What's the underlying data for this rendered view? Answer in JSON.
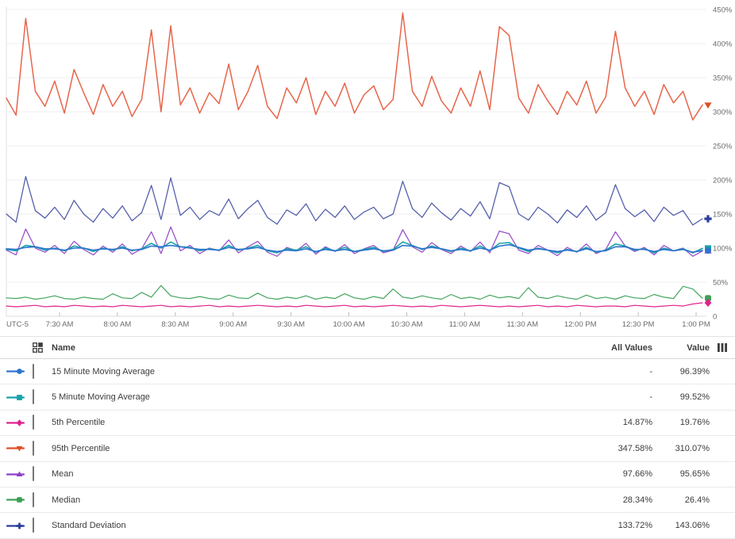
{
  "chart_data": {
    "type": "line",
    "title": "",
    "xlabel": "",
    "ylabel": "",
    "ylim": [
      0,
      450
    ],
    "grid": true,
    "legend_position": "table-below",
    "x_timezone_label": "UTC-5",
    "xticks": [
      "7:30 AM",
      "8:00 AM",
      "8:30 AM",
      "9:00 AM",
      "9:30 AM",
      "10:00 AM",
      "10:30 AM",
      "11:00 AM",
      "11:30 AM",
      "12:00 PM",
      "12:30 PM",
      "1:00 PM"
    ],
    "yticks": [
      {
        "v": 450,
        "label": "450%"
      },
      {
        "v": 400,
        "label": "400%"
      },
      {
        "v": 350,
        "label": "350%"
      },
      {
        "v": 300,
        "label": "300%"
      },
      {
        "v": 250,
        "label": "250%"
      },
      {
        "v": 200,
        "label": "200%"
      },
      {
        "v": 150,
        "label": "150%"
      },
      {
        "v": 100,
        "label": "100%"
      },
      {
        "v": 50,
        "label": "50%"
      },
      {
        "v": 0,
        "label": "0"
      }
    ],
    "series": [
      {
        "name": "95th Percentile",
        "color": "#e7654a",
        "marker_color": "#e14e26",
        "marker": "triangle-down",
        "width": 1.5,
        "values": [
          320,
          295,
          437,
          330,
          308,
          345,
          298,
          362,
          328,
          296,
          340,
          308,
          330,
          293,
          318,
          420,
          300,
          426,
          310,
          335,
          298,
          328,
          312,
          370,
          303,
          330,
          368,
          308,
          290,
          335,
          313,
          350,
          296,
          330,
          308,
          342,
          298,
          325,
          338,
          303,
          318,
          445,
          330,
          308,
          352,
          316,
          298,
          335,
          308,
          360,
          303,
          425,
          412,
          320,
          298,
          340,
          316,
          296,
          330,
          310,
          345,
          298,
          322,
          418,
          335,
          308,
          330,
          296,
          340,
          313,
          330,
          288,
          310.07
        ]
      },
      {
        "name": "Standard Deviation",
        "color": "#5560ac",
        "marker_color": "#2b3e9c",
        "marker": "plus",
        "width": 1.3,
        "values": [
          150,
          138,
          205,
          155,
          144,
          160,
          142,
          170,
          150,
          138,
          158,
          144,
          162,
          140,
          152,
          192,
          142,
          203,
          148,
          160,
          142,
          155,
          148,
          172,
          143,
          158,
          170,
          145,
          135,
          156,
          148,
          165,
          140,
          157,
          145,
          162,
          142,
          153,
          160,
          143,
          150,
          198,
          158,
          145,
          166,
          152,
          141,
          158,
          147,
          168,
          143,
          196,
          190,
          150,
          141,
          160,
          150,
          137,
          156,
          145,
          162,
          141,
          152,
          193,
          158,
          146,
          156,
          139,
          160,
          148,
          155,
          134,
          143.06
        ]
      },
      {
        "name": "Mean",
        "color": "#9852cb",
        "marker_color": "#8c3fc6",
        "marker": "triangle-up",
        "width": 1.3,
        "values": [
          97,
          90,
          128,
          100,
          94,
          104,
          92,
          110,
          98,
          90,
          103,
          94,
          106,
          91,
          99,
          124,
          92,
          131,
          96,
          104,
          92,
          100,
          96,
          112,
          93,
          102,
          110,
          94,
          88,
          101,
          96,
          107,
          91,
          102,
          95,
          105,
          92,
          99,
          104,
          93,
          97,
          127,
          102,
          94,
          108,
          98,
          92,
          103,
          95,
          109,
          93,
          125,
          121,
          97,
          92,
          104,
          97,
          89,
          101,
          94,
          106,
          92,
          98,
          124,
          103,
          95,
          101,
          90,
          104,
          96,
          100,
          88,
          95.65
        ]
      },
      {
        "name": "5 Minute Moving Average",
        "color": "#17a2aa",
        "marker_color": "#17a2aa",
        "marker": "square",
        "width": 1.6,
        "values": [
          98,
          96,
          104,
          102,
          97,
          100,
          96,
          103,
          100,
          95,
          100,
          97,
          102,
          96,
          99,
          107,
          100,
          109,
          102,
          101,
          96,
          99,
          97,
          104,
          97,
          100,
          104,
          96,
          93,
          99,
          97,
          102,
          94,
          100,
          96,
          101,
          95,
          98,
          101,
          95,
          98,
          109,
          104,
          98,
          103,
          99,
          95,
          100,
          96,
          103,
          96,
          107,
          108,
          100,
          95,
          100,
          97,
          93,
          98,
          95,
          101,
          94,
          97,
          106,
          103,
          97,
          99,
          93,
          100,
          96,
          99,
          93,
          99.52
        ]
      },
      {
        "name": "15 Minute Moving Average",
        "color": "#2d74cd",
        "marker_color": "#2d74cd",
        "marker": "circle",
        "width": 1.6,
        "values": [
          99,
          98,
          101,
          102,
          99,
          99,
          97,
          100,
          100,
          97,
          99,
          98,
          100,
          97,
          98,
          103,
          102,
          104,
          102,
          100,
          98,
          98,
          97,
          101,
          98,
          99,
          101,
          97,
          95,
          97,
          96,
          99,
          95,
          98,
          96,
          98,
          95,
          97,
          99,
          96,
          97,
          104,
          103,
          99,
          101,
          99,
          96,
          98,
          96,
          100,
          97,
          103,
          105,
          101,
          97,
          99,
          97,
          95,
          97,
          95,
          99,
          95,
          96,
          102,
          102,
          98,
          98,
          95,
          98,
          96,
          98,
          94,
          96.39
        ]
      },
      {
        "name": "Median",
        "color": "#44a55e",
        "marker_color": "#3da054",
        "marker": "rounded-square",
        "width": 1.2,
        "values": [
          27,
          26,
          28,
          25,
          27,
          30,
          26,
          25,
          28,
          26,
          25,
          33,
          27,
          26,
          35,
          28,
          45,
          30,
          27,
          26,
          29,
          26,
          25,
          31,
          27,
          26,
          34,
          27,
          25,
          28,
          26,
          30,
          25,
          28,
          26,
          33,
          27,
          25,
          29,
          26,
          40,
          28,
          26,
          30,
          27,
          25,
          32,
          26,
          28,
          25,
          31,
          27,
          29,
          26,
          42,
          28,
          26,
          30,
          27,
          25,
          31,
          26,
          28,
          25,
          30,
          27,
          26,
          32,
          28,
          26,
          44,
          40,
          26.4
        ]
      },
      {
        "name": "5th Percentile",
        "color": "#e0258f",
        "marker_color": "#e0218d",
        "marker": "diamond",
        "width": 1.2,
        "values": [
          15,
          14,
          15,
          16,
          14,
          15,
          14,
          16,
          15,
          14,
          15,
          14,
          16,
          15,
          14,
          15,
          16,
          14,
          15,
          14,
          15,
          16,
          14,
          15,
          14,
          15,
          16,
          15,
          14,
          15,
          14,
          16,
          15,
          14,
          15,
          16,
          14,
          15,
          14,
          15,
          16,
          15,
          14,
          15,
          14,
          16,
          15,
          14,
          15,
          16,
          15,
          14,
          15,
          14,
          15,
          16,
          14,
          15,
          14,
          16,
          15,
          14,
          15,
          15,
          14,
          16,
          15,
          14,
          15,
          16,
          15,
          18,
          19.76
        ]
      }
    ]
  },
  "legend": {
    "headers": {
      "name": "Name",
      "all_values": "All Values",
      "value": "Value"
    },
    "rows": [
      {
        "name": "15 Minute Moving Average",
        "series": 4,
        "all_values": "-",
        "value": "96.39%"
      },
      {
        "name": "5 Minute Moving Average",
        "series": 3,
        "all_values": "-",
        "value": "99.52%"
      },
      {
        "name": "5th Percentile",
        "series": 6,
        "all_values": "14.87%",
        "value": "19.76%"
      },
      {
        "name": "95th Percentile",
        "series": 0,
        "all_values": "347.58%",
        "value": "310.07%"
      },
      {
        "name": "Mean",
        "series": 2,
        "all_values": "97.66%",
        "value": "95.65%"
      },
      {
        "name": "Median",
        "series": 5,
        "all_values": "28.34%",
        "value": "26.4%"
      },
      {
        "name": "Standard Deviation",
        "series": 1,
        "all_values": "133.72%",
        "value": "143.06%"
      }
    ]
  },
  "icons": {
    "grid_icon_color": "#3c3c3c",
    "columns_icon_color": "#3c3c3c"
  }
}
